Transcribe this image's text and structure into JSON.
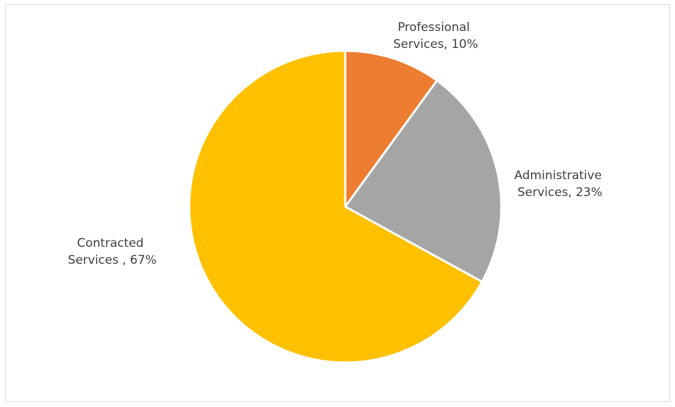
{
  "chart_data": {
    "type": "pie",
    "title": "",
    "categories": [
      "Professional Services",
      "Administrative Services",
      "Contracted Services"
    ],
    "values": [
      10,
      23,
      67
    ],
    "unit": "%",
    "colors": [
      "#ED7D31",
      "#A5A5A5",
      "#FFC000"
    ],
    "start_angle_deg": 0,
    "direction": "clockwise",
    "legend": "none",
    "data_labels": [
      {
        "line1": "Professional",
        "line2": "Services, 10%"
      },
      {
        "line1": "Administrative",
        "line2": "Services, 23%"
      },
      {
        "line1": "Contracted",
        "line2": "Services , 67%"
      }
    ]
  }
}
